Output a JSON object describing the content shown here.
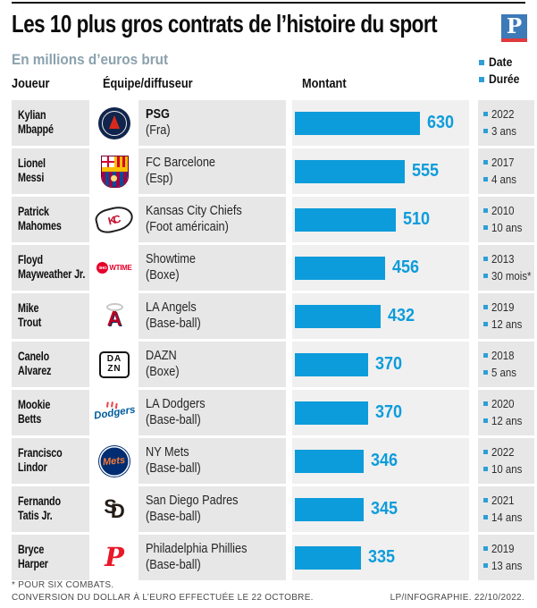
{
  "header": {
    "title": "Les 10 plus gros contrats de l’histoire du sport",
    "subtitle": "En millions d’euros brut",
    "brand_logo": "P",
    "columns": {
      "player": "Joueur",
      "team": "Équipe/diffuseur",
      "amount": "Montant"
    },
    "legend": {
      "date": "Date",
      "duration": "Durée"
    }
  },
  "rows": [
    {
      "player1": "Kylian",
      "player2": "Mbappé",
      "team": "PSG",
      "sport": "(Fra)",
      "value": "630",
      "date": "2022",
      "duration": "3 ans",
      "logo_name": "psg-logo"
    },
    {
      "player1": "Lionel",
      "player2": "Messi",
      "team": "FC Barcelone",
      "sport": "(Esp)",
      "value": "555",
      "date": "2017",
      "duration": "4 ans",
      "logo_name": "fc-barcelona-logo"
    },
    {
      "player1": "Patrick",
      "player2": "Mahomes",
      "team": "Kansas City Chiefs",
      "sport": "(Foot américain)",
      "value": "510",
      "date": "2010",
      "duration": "10 ans",
      "logo_text": "KC",
      "logo_name": "kansas-city-chiefs-logo"
    },
    {
      "player1": "Floyd",
      "player2": "Mayweather Jr.",
      "team": "Showtime",
      "sport": "(Boxe)",
      "value": "456",
      "date": "2013",
      "duration": "30 mois*",
      "logo_text1": "SHO",
      "logo_text2": "WTIME",
      "logo_name": "showtime-logo"
    },
    {
      "player1": "Mike",
      "player2": "Trout",
      "team": "LA Angels",
      "sport": "(Base-ball)",
      "value": "432",
      "date": "2019",
      "duration": "12 ans",
      "logo_text": "A",
      "logo_name": "la-angels-logo"
    },
    {
      "player1": "Canelo",
      "player2": "Alvarez",
      "team": "DAZN",
      "sport": "(Boxe)",
      "value": "370",
      "date": "2018",
      "duration": "5 ans",
      "logo_text1": "DA",
      "logo_text2": "ZN",
      "logo_name": "dazn-logo"
    },
    {
      "player1": "Mookie",
      "player2": "Betts",
      "team": "LA Dodgers",
      "sport": "(Base-ball)",
      "value": "370",
      "date": "2020",
      "duration": "12 ans",
      "logo_text": "Dodgers",
      "logo_name": "la-dodgers-logo"
    },
    {
      "player1": "Francisco",
      "player2": "Lindor",
      "team": "NY Mets",
      "sport": "(Base-ball)",
      "value": "346",
      "date": "2022",
      "duration": "10 ans",
      "logo_text": "Mets",
      "logo_name": "ny-mets-logo"
    },
    {
      "player1": "Fernando",
      "player2": "Tatis Jr.",
      "team": "San Diego Padres",
      "sport": "(Base-ball)",
      "value": "345",
      "date": "2021",
      "duration": "14 ans",
      "logo_text1": "S",
      "logo_text2": "D",
      "logo_name": "san-diego-padres-logo"
    },
    {
      "player1": "Bryce",
      "player2": "Harper",
      "team": "Philadelphia Phillies",
      "sport": "(Base-ball)",
      "value": "335",
      "date": "2019",
      "duration": "13 ans",
      "logo_text": "P",
      "logo_name": "philadelphia-phillies-logo"
    }
  ],
  "footer": {
    "footnote1": "* POUR SIX COMBATS.",
    "footnote2": "CONVERSION DU DOLLAR À L’EURO EFFECTUÉE LE 22 OCTOBRE.",
    "credit": "LP/INFOGRAPHIE.  22/10/2022."
  },
  "colors": {
    "bar_blue": "#0d9cdb",
    "legend_square_blue": "#2d9fd6",
    "cell_gray": "#e7e7e7",
    "bar_cell_gray": "#f0f0f0",
    "subtitle_gray_blue": "#8ba1ad",
    "brand_blue": "#3d7ab8",
    "brand_red": "#e03a3e"
  },
  "chart_data": {
    "type": "bar",
    "orientation": "horizontal",
    "title": "Les 10 plus gros contrats de l’histoire du sport",
    "subtitle": "En millions d’euros brut",
    "unit": "millions d'euros brut",
    "categories": [
      "Kylian Mbappé",
      "Lionel Messi",
      "Patrick Mahomes",
      "Floyd Mayweather Jr.",
      "Mike Trout",
      "Canelo Alvarez",
      "Mookie Betts",
      "Francisco Lindor",
      "Fernando Tatis Jr.",
      "Bryce Harper"
    ],
    "values": [
      630,
      555,
      510,
      456,
      432,
      370,
      370,
      346,
      345,
      335
    ],
    "teams": [
      "PSG (Fra)",
      "FC Barcelone (Esp)",
      "Kansas City Chiefs (Foot américain)",
      "Showtime (Boxe)",
      "LA Angels (Base-ball)",
      "DAZN (Boxe)",
      "LA Dodgers (Base-ball)",
      "NY Mets (Base-ball)",
      "San Diego Padres (Base-ball)",
      "Philadelphia Phillies (Base-ball)"
    ],
    "dates": [
      "2022",
      "2017",
      "2010",
      "2013",
      "2019",
      "2018",
      "2020",
      "2022",
      "2021",
      "2019"
    ],
    "durations": [
      "3 ans",
      "4 ans",
      "10 ans",
      "30 mois*",
      "12 ans",
      "5 ans",
      "12 ans",
      "10 ans",
      "14 ans",
      "13 ans"
    ],
    "xlim": [
      0,
      630
    ],
    "value_labels": true,
    "grid": false,
    "legend_position": "top-right",
    "bar_color": "#0d9cdb",
    "footnote": "* POUR SIX COMBATS. CONVERSION DU DOLLAR À L’EURO EFFECTUÉE LE 22 OCTOBRE."
  }
}
